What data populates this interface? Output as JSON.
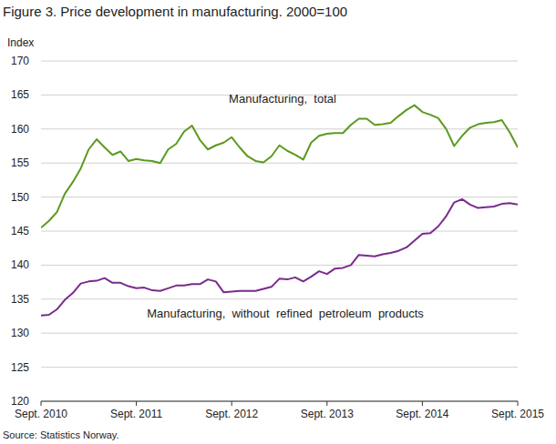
{
  "chart_data": {
    "type": "line",
    "title": "Figure 3. Price development in manufacturing. 2000=100",
    "y_label": "Index",
    "source": "Source: Statistics Norway.",
    "categories": [
      "Sept. 2010",
      null,
      null,
      null,
      null,
      null,
      null,
      null,
      null,
      null,
      null,
      null,
      "Sept. 2011",
      null,
      null,
      null,
      null,
      null,
      null,
      null,
      null,
      null,
      null,
      null,
      "Sept. 2012",
      null,
      null,
      null,
      null,
      null,
      null,
      null,
      null,
      null,
      null,
      null,
      "Sept. 2013",
      null,
      null,
      null,
      null,
      null,
      null,
      null,
      null,
      null,
      null,
      null,
      "Sept. 2014",
      null,
      null,
      null,
      null,
      null,
      null,
      null,
      null,
      null,
      null,
      null,
      "Sept. 2015"
    ],
    "series": [
      {
        "name": "Manufacturing,  total",
        "color": "#5b9a1e",
        "values": [
          145.5,
          146.5,
          147.8,
          150.5,
          152.2,
          154.2,
          157.0,
          158.5,
          157.3,
          156.2,
          156.7,
          155.3,
          155.6,
          155.4,
          155.3,
          155.0,
          157.0,
          157.8,
          159.6,
          160.5,
          158.4,
          157.0,
          157.6,
          158.0,
          158.8,
          157.3,
          156.0,
          155.3,
          155.1,
          156.0,
          157.6,
          156.8,
          156.2,
          155.5,
          158.0,
          159.0,
          159.3,
          159.4,
          159.4,
          160.6,
          161.5,
          161.5,
          160.6,
          160.7,
          160.9,
          161.9,
          162.8,
          163.5,
          162.5,
          162.1,
          161.6,
          160.0,
          157.5,
          159.0,
          160.2,
          160.7,
          160.9,
          161.0,
          161.3,
          159.5,
          157.3
        ]
      },
      {
        "name": "Manufacturing,  without  refined  petroleum  products",
        "color": "#7a2a8c",
        "values": [
          132.6,
          132.7,
          133.5,
          134.9,
          135.9,
          137.3,
          137.6,
          137.7,
          138.1,
          137.4,
          137.4,
          136.9,
          136.6,
          136.7,
          136.3,
          136.2,
          136.6,
          137.0,
          137.0,
          137.2,
          137.2,
          137.9,
          137.6,
          136.0,
          136.1,
          136.2,
          136.2,
          136.2,
          136.5,
          136.8,
          138.0,
          137.9,
          138.2,
          137.6,
          138.3,
          139.1,
          138.7,
          139.5,
          139.6,
          140.0,
          141.5,
          141.4,
          141.3,
          141.6,
          141.8,
          142.1,
          142.6,
          143.6,
          144.6,
          144.7,
          145.7,
          147.2,
          149.2,
          149.7,
          148.9,
          148.4,
          148.5,
          148.6,
          149.0,
          149.1,
          148.9
        ]
      }
    ],
    "ylim": [
      120,
      170
    ],
    "yticks": [
      120,
      125,
      130,
      135,
      140,
      145,
      150,
      155,
      160,
      165,
      170
    ],
    "grid": true
  }
}
